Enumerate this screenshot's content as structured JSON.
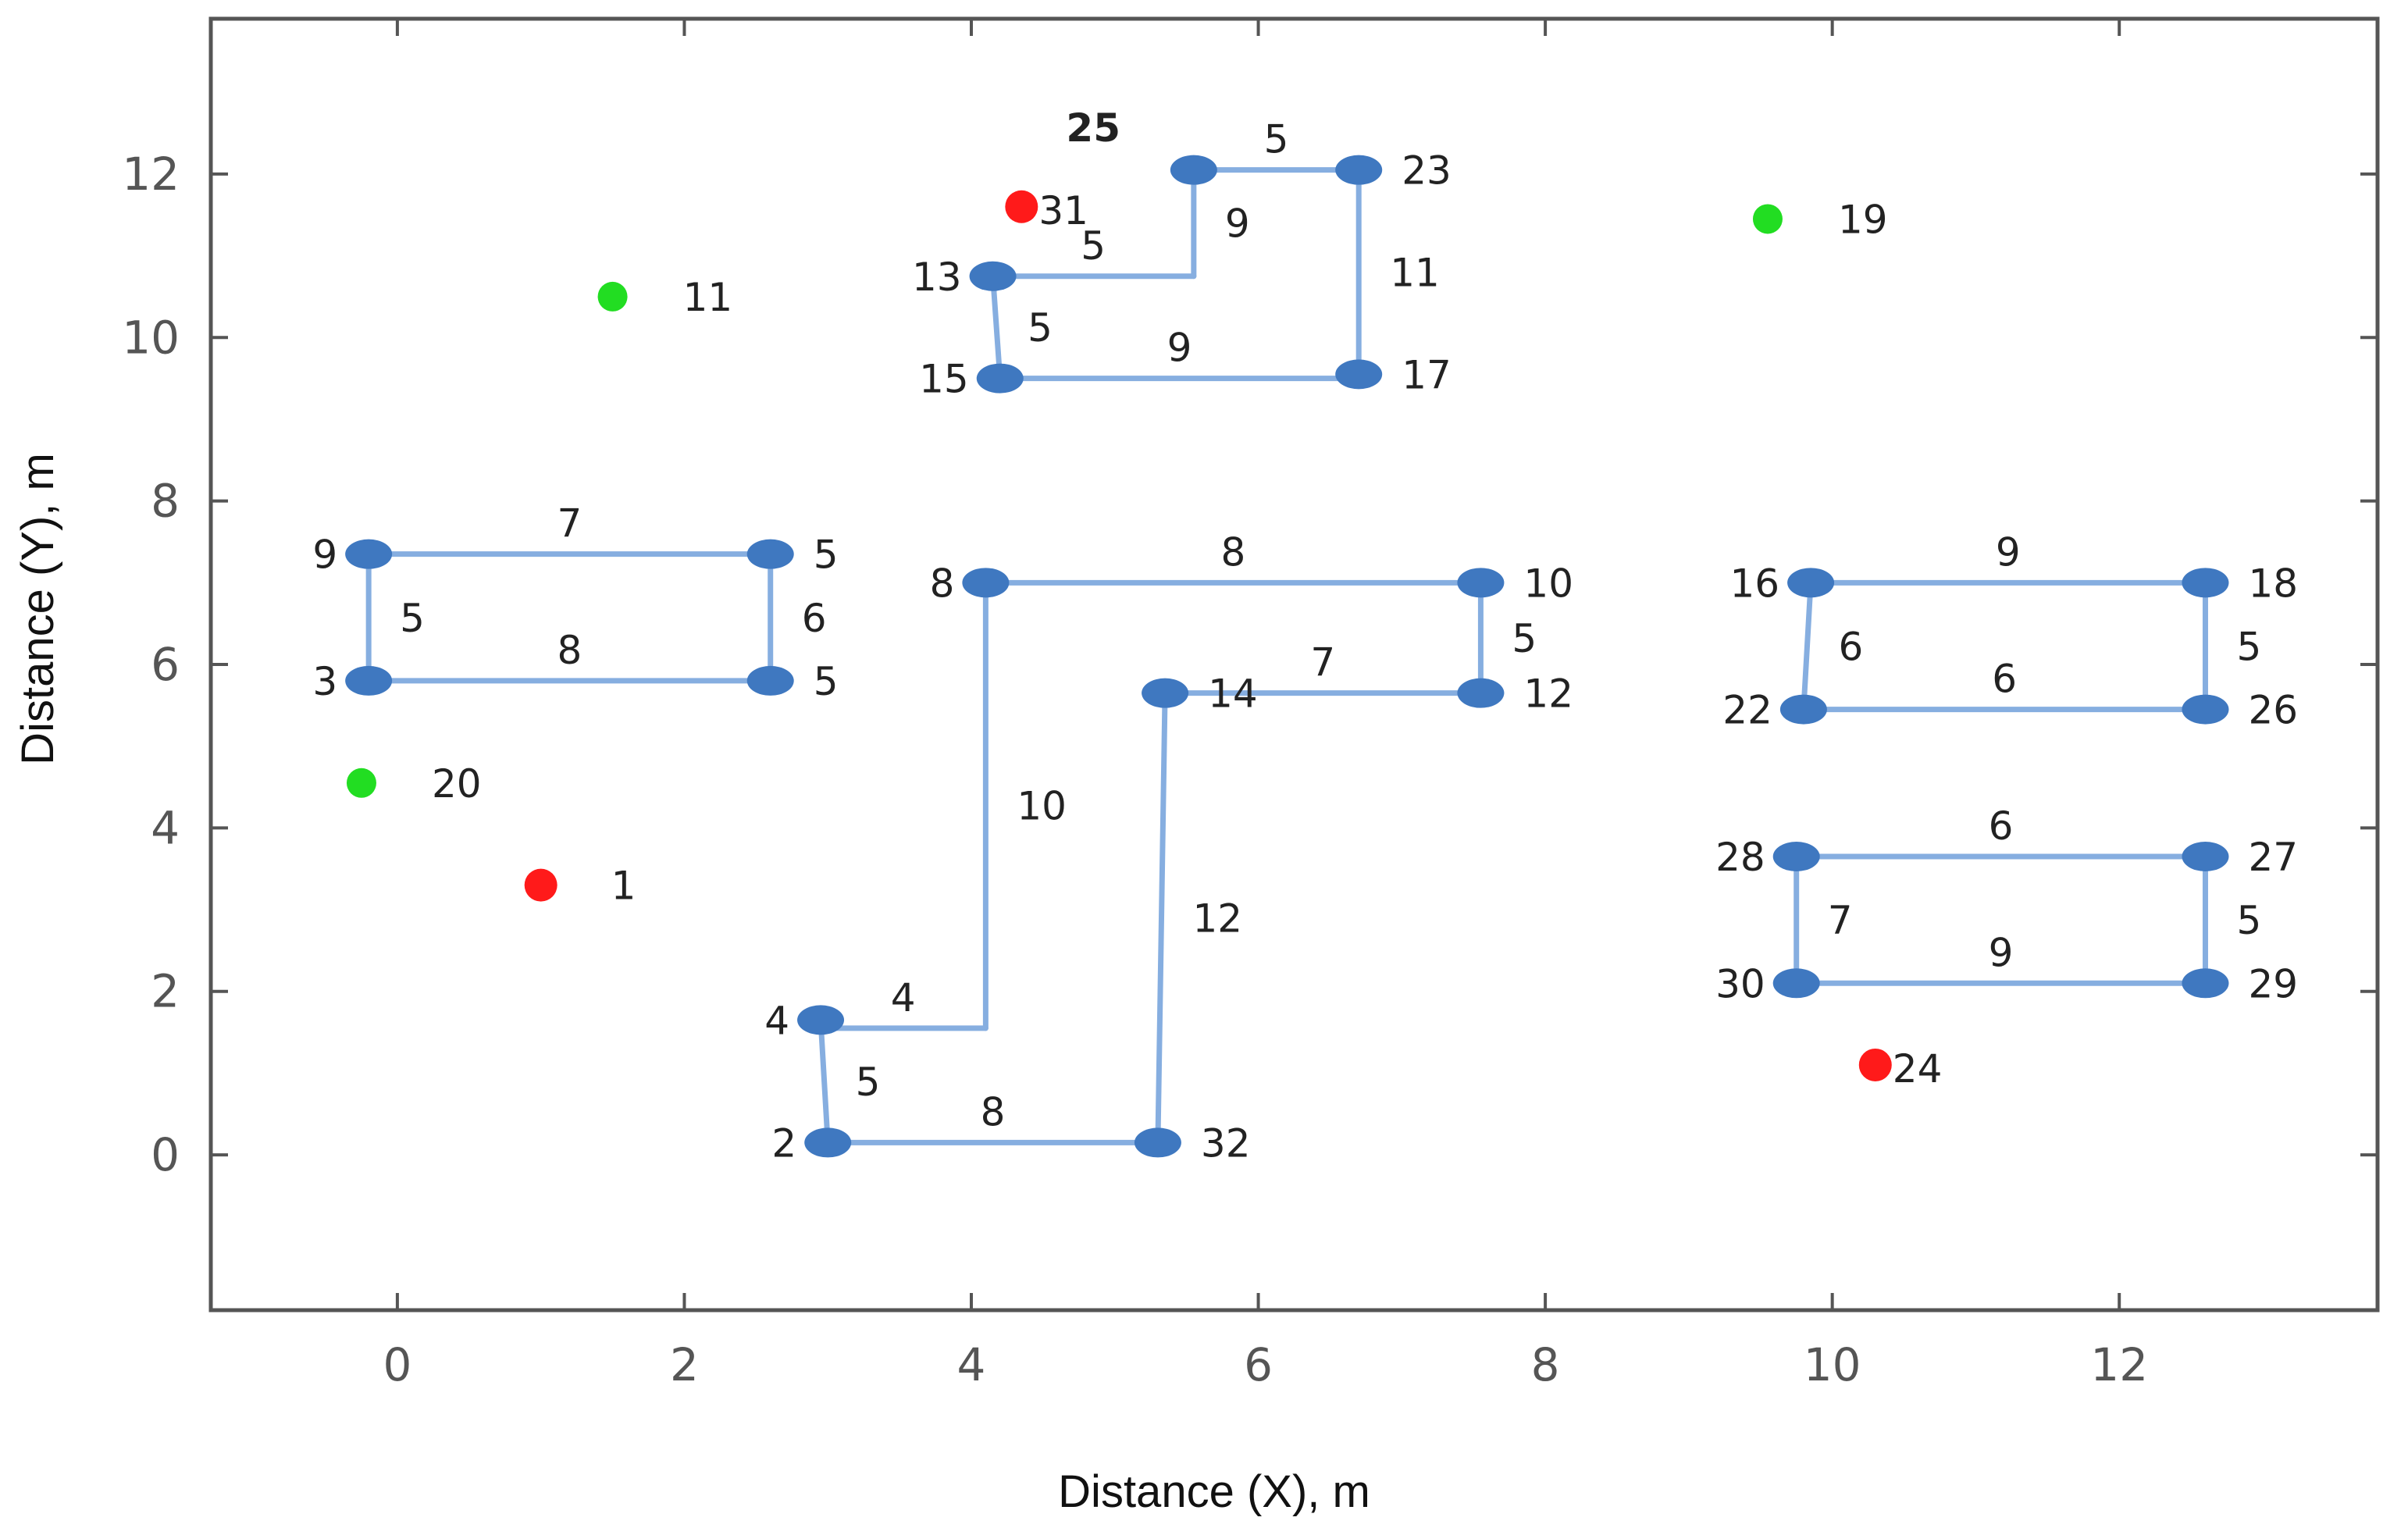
{
  "chart_data": {
    "type": "scatter",
    "title": "",
    "xlabel": "Distance (X), m",
    "ylabel": "Distance (Y), m",
    "xlim": [
      -1.3,
      13.8
    ],
    "ylim": [
      -1.9,
      13.9
    ],
    "xticks": [
      0,
      2,
      4,
      6,
      8,
      10,
      12
    ],
    "yticks": [
      0,
      2,
      4,
      6,
      8,
      10,
      12
    ],
    "grid": false,
    "colors": {
      "route_nodes": "#3f78c0",
      "route_edges": "#86aee0",
      "red_points": "#ff1a1a",
      "green_points": "#22dd22",
      "frame": "#555555"
    },
    "nodes": [
      {
        "id": "9",
        "x": -0.2,
        "y": 7.35,
        "color": "blue"
      },
      {
        "id": "5",
        "x": 2.6,
        "y": 7.35,
        "color": "blue"
      },
      {
        "id": "3",
        "x": -0.2,
        "y": 5.8,
        "color": "blue"
      },
      {
        "id": "5",
        "x": 2.6,
        "y": 5.8,
        "color": "blue"
      },
      {
        "id": "8",
        "x": 4.1,
        "y": 7.0,
        "color": "blue"
      },
      {
        "id": "10",
        "x": 7.55,
        "y": 7.0,
        "color": "blue"
      },
      {
        "id": "12",
        "x": 7.55,
        "y": 5.65,
        "color": "blue"
      },
      {
        "id": "14",
        "x": 5.35,
        "y": 5.65,
        "color": "blue"
      },
      {
        "id": "4",
        "x": 2.95,
        "y": 1.65,
        "color": "blue"
      },
      {
        "id": "2",
        "x": 3.0,
        "y": 0.15,
        "color": "blue"
      },
      {
        "id": "32",
        "x": 5.3,
        "y": 0.15,
        "color": "blue"
      },
      {
        "id": "13",
        "x": 4.15,
        "y": 10.75,
        "color": "blue"
      },
      {
        "id": "15",
        "x": 4.2,
        "y": 9.5,
        "color": "blue"
      },
      {
        "id": "17",
        "x": 6.7,
        "y": 9.55,
        "color": "blue"
      },
      {
        "id": "23",
        "x": 6.7,
        "y": 12.05,
        "color": "blue"
      },
      {
        "id": "",
        "x": 5.55,
        "y": 12.05,
        "color": "blue"
      },
      {
        "id": "16",
        "x": 9.85,
        "y": 7.0,
        "color": "blue"
      },
      {
        "id": "18",
        "x": 12.6,
        "y": 7.0,
        "color": "blue"
      },
      {
        "id": "22",
        "x": 9.8,
        "y": 5.45,
        "color": "blue"
      },
      {
        "id": "26",
        "x": 12.6,
        "y": 5.45,
        "color": "blue"
      },
      {
        "id": "28",
        "x": 9.75,
        "y": 3.65,
        "color": "blue"
      },
      {
        "id": "27",
        "x": 12.6,
        "y": 3.65,
        "color": "blue"
      },
      {
        "id": "30",
        "x": 9.75,
        "y": 2.1,
        "color": "blue"
      },
      {
        "id": "29",
        "x": 12.6,
        "y": 2.1,
        "color": "blue"
      },
      {
        "id": "31",
        "x": 4.35,
        "y": 11.6,
        "color": "red"
      },
      {
        "id": "1",
        "x": 1.0,
        "y": 3.3,
        "color": "red"
      },
      {
        "id": "24",
        "x": 10.3,
        "y": 1.1,
        "color": "red"
      },
      {
        "id": "11",
        "x": 1.5,
        "y": 10.5,
        "color": "green"
      },
      {
        "id": "19",
        "x": 9.55,
        "y": 11.45,
        "color": "green"
      },
      {
        "id": "20",
        "x": -0.25,
        "y": 4.55,
        "color": "green"
      }
    ],
    "edges": [
      {
        "from": [
          -0.2,
          7.35
        ],
        "to": [
          2.6,
          7.35
        ],
        "label": "7"
      },
      {
        "from": [
          -0.2,
          7.35
        ],
        "to": [
          -0.2,
          5.8
        ],
        "label": "5"
      },
      {
        "from": [
          2.6,
          7.35
        ],
        "to": [
          2.6,
          5.8
        ],
        "label": "6"
      },
      {
        "from": [
          -0.2,
          5.8
        ],
        "to": [
          2.6,
          5.8
        ],
        "label": "8"
      },
      {
        "from": [
          4.1,
          7.0
        ],
        "to": [
          7.55,
          7.0
        ],
        "label": "8"
      },
      {
        "from": [
          7.55,
          7.0
        ],
        "to": [
          7.55,
          5.65
        ],
        "label": "5"
      },
      {
        "from": [
          5.35,
          5.65
        ],
        "to": [
          7.55,
          5.65
        ],
        "label": "7"
      },
      {
        "from": [
          4.1,
          7.0
        ],
        "to": [
          4.1,
          1.55
        ],
        "label": "10"
      },
      {
        "from": [
          4.1,
          1.55
        ],
        "to": [
          2.95,
          1.55
        ],
        "label": "4"
      },
      {
        "from": [
          2.95,
          1.65
        ],
        "to": [
          3.0,
          0.15
        ],
        "label": "5"
      },
      {
        "from": [
          3.0,
          0.15
        ],
        "to": [
          5.3,
          0.15
        ],
        "label": "8"
      },
      {
        "from": [
          5.3,
          0.15
        ],
        "to": [
          5.35,
          5.65
        ],
        "label": "12"
      },
      {
        "from": [
          4.15,
          10.75
        ],
        "to": [
          5.55,
          10.75
        ],
        "label": "5"
      },
      {
        "from": [
          5.55,
          10.75
        ],
        "to": [
          5.55,
          12.05
        ],
        "label": "9"
      },
      {
        "from": [
          5.55,
          12.05
        ],
        "to": [
          6.7,
          12.05
        ],
        "label": "5"
      },
      {
        "from": [
          6.7,
          12.05
        ],
        "to": [
          6.7,
          9.55
        ],
        "label": "11"
      },
      {
        "from": [
          4.15,
          10.75
        ],
        "to": [
          4.2,
          9.5
        ],
        "label": "5"
      },
      {
        "from": [
          4.2,
          9.5
        ],
        "to": [
          6.7,
          9.5
        ],
        "label": "9"
      },
      {
        "from": [
          9.85,
          7.0
        ],
        "to": [
          12.6,
          7.0
        ],
        "label": "9"
      },
      {
        "from": [
          9.85,
          7.0
        ],
        "to": [
          9.8,
          5.45
        ],
        "label": "6"
      },
      {
        "from": [
          12.6,
          7.0
        ],
        "to": [
          12.6,
          5.45
        ],
        "label": "5"
      },
      {
        "from": [
          9.8,
          5.45
        ],
        "to": [
          12.6,
          5.45
        ],
        "label": "6"
      },
      {
        "from": [
          9.75,
          3.65
        ],
        "to": [
          12.6,
          3.65
        ],
        "label": "6"
      },
      {
        "from": [
          9.75,
          3.65
        ],
        "to": [
          9.75,
          2.1
        ],
        "label": "7"
      },
      {
        "from": [
          12.6,
          3.65
        ],
        "to": [
          12.6,
          2.1
        ],
        "label": "5"
      },
      {
        "from": [
          9.75,
          2.1
        ],
        "to": [
          12.6,
          2.1
        ],
        "label": "9"
      }
    ],
    "annotations": [
      {
        "text": "25",
        "x": 4.85,
        "y": 12.4
      }
    ]
  }
}
